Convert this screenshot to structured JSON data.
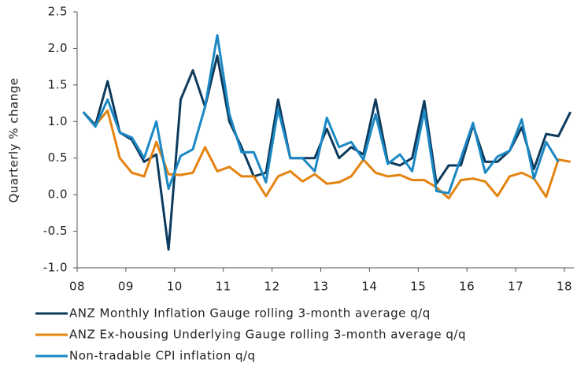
{
  "chart_data": {
    "type": "line",
    "y_label": "Quarterly % change",
    "x": [
      2008.125,
      2008.375,
      2008.625,
      2008.875,
      2009.125,
      2009.375,
      2009.625,
      2009.875,
      2010.125,
      2010.375,
      2010.625,
      2010.875,
      2011.125,
      2011.375,
      2011.625,
      2011.875,
      2012.125,
      2012.375,
      2012.625,
      2012.875,
      2013.125,
      2013.375,
      2013.625,
      2013.875,
      2014.125,
      2014.375,
      2014.625,
      2014.875,
      2015.125,
      2015.375,
      2015.625,
      2015.875,
      2016.125,
      2016.375,
      2016.625,
      2016.875,
      2017.125,
      2017.375,
      2017.625,
      2017.875,
      2018.125
    ],
    "series": [
      {
        "name": "ANZ Monthly Inflation Gauge rolling 3-month average q/q",
        "color": "#0d3b5e",
        "values": [
          1.13,
          0.95,
          1.55,
          0.85,
          0.75,
          0.45,
          0.55,
          -0.75,
          1.3,
          1.7,
          1.2,
          1.9,
          1.0,
          0.65,
          0.25,
          0.3,
          1.3,
          0.5,
          0.5,
          0.5,
          0.9,
          0.5,
          0.65,
          0.55,
          1.3,
          0.45,
          0.4,
          0.5,
          1.28,
          0.15,
          0.4,
          0.4,
          0.95,
          0.45,
          0.45,
          0.6,
          0.92,
          0.35,
          0.83,
          0.8,
          1.13
        ]
      },
      {
        "name": "ANZ Ex-housing Underlying Gauge rolling 3-month average q/q",
        "color": "#e58310",
        "values": [
          null,
          0.95,
          1.15,
          0.5,
          0.3,
          0.25,
          0.72,
          0.28,
          0.27,
          0.3,
          0.65,
          0.32,
          0.38,
          0.25,
          0.25,
          -0.02,
          0.25,
          0.32,
          0.18,
          0.28,
          0.15,
          0.17,
          0.25,
          0.48,
          0.3,
          0.25,
          0.27,
          0.2,
          0.2,
          0.1,
          -0.05,
          0.2,
          0.22,
          0.18,
          -0.02,
          0.25,
          0.3,
          0.22,
          -0.03,
          0.48,
          0.45
        ]
      },
      {
        "name": "Non-tradable CPI inflation q/q",
        "color": "#1b88c4",
        "values": [
          1.13,
          0.93,
          1.3,
          0.85,
          0.78,
          0.5,
          1.0,
          0.08,
          0.53,
          0.62,
          1.2,
          2.18,
          1.1,
          0.58,
          0.58,
          0.17,
          1.17,
          0.5,
          0.5,
          0.32,
          1.05,
          0.65,
          0.72,
          0.48,
          1.1,
          0.42,
          0.55,
          0.32,
          1.15,
          0.05,
          0.02,
          0.5,
          0.98,
          0.3,
          0.52,
          0.6,
          1.03,
          0.22,
          0.72,
          0.45,
          null
        ]
      }
    ],
    "xlim": [
      2008,
      2018.2
    ],
    "xticks": [
      {
        "value": 2008,
        "label": "08"
      },
      {
        "value": 2009,
        "label": "09"
      },
      {
        "value": 2010,
        "label": "10"
      },
      {
        "value": 2011,
        "label": "11"
      },
      {
        "value": 2012,
        "label": "12"
      },
      {
        "value": 2013,
        "label": "13"
      },
      {
        "value": 2014,
        "label": "14"
      },
      {
        "value": 2015,
        "label": "15"
      },
      {
        "value": 2016,
        "label": "16"
      },
      {
        "value": 2017,
        "label": "17"
      },
      {
        "value": 2018,
        "label": "18"
      }
    ],
    "ylim": [
      -1,
      2.5
    ],
    "yticks": [
      {
        "value": -1,
        "label": "-1.0"
      },
      -0.5,
      {
        "value": 0,
        "label": "0.0"
      },
      0.5,
      {
        "value": 1,
        "label": "1.0"
      },
      1.5,
      {
        "value": 2,
        "label": "2.0"
      },
      2.5
    ],
    "grid": false
  }
}
